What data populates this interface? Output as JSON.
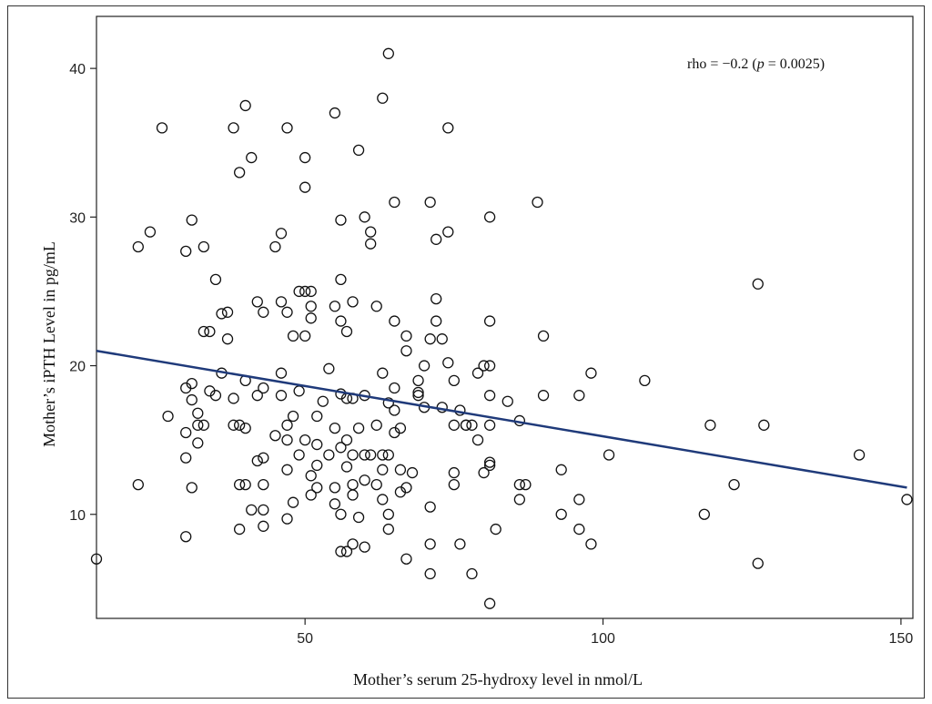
{
  "chart_data": {
    "type": "scatter",
    "title": "",
    "xlabel": "Mother’s serum 25-hydroxy level in nmol/L",
    "ylabel": "Mother’s iPTH Level in pg/mL",
    "xlim": [
      15,
      152
    ],
    "ylim": [
      3,
      43.5
    ],
    "xticks": [
      50,
      100,
      150
    ],
    "yticks": [
      10,
      20,
      30,
      40
    ],
    "annotation": {
      "prefix": "rho = −0.2 (",
      "italic": "p",
      "suffix": " = 0.0025)"
    },
    "line_color": "#1f3a7a",
    "trendline": {
      "x": [
        15,
        151
      ],
      "y": [
        21.0,
        11.8
      ]
    },
    "points": [
      [
        15,
        7
      ],
      [
        22,
        28
      ],
      [
        22,
        12
      ],
      [
        24,
        29
      ],
      [
        26,
        36
      ],
      [
        27,
        16.6
      ],
      [
        30,
        27.7
      ],
      [
        30,
        18.5
      ],
      [
        30,
        15.5
      ],
      [
        30,
        13.8
      ],
      [
        30,
        8.5
      ],
      [
        31,
        29.8
      ],
      [
        31,
        18.8
      ],
      [
        31,
        17.7
      ],
      [
        31,
        11.8
      ],
      [
        32,
        16
      ],
      [
        32,
        16.8
      ],
      [
        32,
        14.8
      ],
      [
        33,
        28
      ],
      [
        33,
        22.3
      ],
      [
        33,
        16
      ],
      [
        34,
        22.3
      ],
      [
        34,
        18.3
      ],
      [
        35,
        25.8
      ],
      [
        35,
        18
      ],
      [
        36,
        23.5
      ],
      [
        36,
        19.5
      ],
      [
        37,
        21.8
      ],
      [
        37,
        23.6
      ],
      [
        38,
        17.8
      ],
      [
        38,
        16
      ],
      [
        38,
        36
      ],
      [
        39,
        33
      ],
      [
        39,
        16
      ],
      [
        39,
        12
      ],
      [
        39,
        9
      ],
      [
        40,
        37.5
      ],
      [
        40,
        19
      ],
      [
        40,
        15.8
      ],
      [
        40,
        12
      ],
      [
        41,
        34
      ],
      [
        41,
        10.3
      ],
      [
        42,
        24.3
      ],
      [
        42,
        18
      ],
      [
        42,
        13.6
      ],
      [
        43,
        23.6
      ],
      [
        43,
        18.5
      ],
      [
        43,
        13.8
      ],
      [
        43,
        12
      ],
      [
        43,
        9.2
      ],
      [
        43,
        10.3
      ],
      [
        45,
        28
      ],
      [
        45,
        15.3
      ],
      [
        46,
        24.3
      ],
      [
        46,
        19.5
      ],
      [
        46,
        18
      ],
      [
        46,
        28.9
      ],
      [
        47,
        36
      ],
      [
        47,
        23.6
      ],
      [
        47,
        16
      ],
      [
        47,
        15
      ],
      [
        47,
        13
      ],
      [
        47,
        9.7
      ],
      [
        48,
        22
      ],
      [
        48,
        16.6
      ],
      [
        48,
        10.8
      ],
      [
        49,
        25
      ],
      [
        49,
        14
      ],
      [
        49,
        18.3
      ],
      [
        50,
        34
      ],
      [
        50,
        32
      ],
      [
        50,
        25
      ],
      [
        50,
        22
      ],
      [
        50,
        15
      ],
      [
        51,
        25
      ],
      [
        51,
        24
      ],
      [
        51,
        23.2
      ],
      [
        51,
        12.6
      ],
      [
        51,
        11.3
      ],
      [
        52,
        16.6
      ],
      [
        52,
        14.7
      ],
      [
        52,
        13.3
      ],
      [
        52,
        11.8
      ],
      [
        53,
        17.6
      ],
      [
        54,
        19.8
      ],
      [
        54,
        14
      ],
      [
        55,
        37
      ],
      [
        55,
        24
      ],
      [
        55,
        15.8
      ],
      [
        55,
        11.8
      ],
      [
        55,
        10.7
      ],
      [
        56,
        29.8
      ],
      [
        56,
        25.8
      ],
      [
        56,
        23
      ],
      [
        56,
        18.1
      ],
      [
        56,
        14.5
      ],
      [
        56,
        10
      ],
      [
        56,
        7.5
      ],
      [
        57,
        22.3
      ],
      [
        57,
        17.8
      ],
      [
        57,
        15
      ],
      [
        57,
        13.2
      ],
      [
        57,
        7.5
      ],
      [
        58,
        24.3
      ],
      [
        58,
        17.8
      ],
      [
        58,
        14
      ],
      [
        58,
        12
      ],
      [
        58,
        11.3
      ],
      [
        58,
        8
      ],
      [
        59,
        34.5
      ],
      [
        59,
        15.8
      ],
      [
        59,
        9.8
      ],
      [
        60,
        30
      ],
      [
        60,
        18
      ],
      [
        60,
        14
      ],
      [
        60,
        12.3
      ],
      [
        60,
        7.8
      ],
      [
        61,
        29
      ],
      [
        61,
        28.2
      ],
      [
        61,
        14
      ],
      [
        62,
        24
      ],
      [
        62,
        16
      ],
      [
        62,
        12
      ],
      [
        63,
        38
      ],
      [
        63,
        19.5
      ],
      [
        63,
        14
      ],
      [
        63,
        13
      ],
      [
        63,
        11
      ],
      [
        64,
        41
      ],
      [
        64,
        17.5
      ],
      [
        64,
        14
      ],
      [
        64,
        9
      ],
      [
        64,
        10
      ],
      [
        65,
        31
      ],
      [
        65,
        23
      ],
      [
        65,
        18.5
      ],
      [
        65,
        17
      ],
      [
        65,
        15.5
      ],
      [
        66,
        15.8
      ],
      [
        66,
        13
      ],
      [
        66,
        11.5
      ],
      [
        67,
        22
      ],
      [
        67,
        21
      ],
      [
        67,
        11.8
      ],
      [
        67,
        7
      ],
      [
        68,
        12.8
      ],
      [
        69,
        18.2
      ],
      [
        69,
        18
      ],
      [
        69,
        19
      ],
      [
        70,
        20
      ],
      [
        70,
        17.2
      ],
      [
        71,
        31
      ],
      [
        71,
        21.8
      ],
      [
        71,
        10.5
      ],
      [
        71,
        8
      ],
      [
        71,
        6
      ],
      [
        72,
        28.5
      ],
      [
        72,
        24.5
      ],
      [
        72,
        23
      ],
      [
        73,
        21.8
      ],
      [
        73,
        17.2
      ],
      [
        74,
        36
      ],
      [
        74,
        29
      ],
      [
        74,
        20.2
      ],
      [
        75,
        19
      ],
      [
        75,
        16
      ],
      [
        75,
        12.8
      ],
      [
        75,
        12
      ],
      [
        76,
        17
      ],
      [
        76,
        8
      ],
      [
        77,
        16
      ],
      [
        77,
        16
      ],
      [
        78,
        16
      ],
      [
        78,
        6
      ],
      [
        79,
        19.5
      ],
      [
        79,
        15
      ],
      [
        80,
        20
      ],
      [
        80,
        12.8
      ],
      [
        81,
        30
      ],
      [
        81,
        23
      ],
      [
        81,
        20
      ],
      [
        81,
        18
      ],
      [
        81,
        16
      ],
      [
        81,
        13.5
      ],
      [
        81,
        13.3
      ],
      [
        81,
        4
      ],
      [
        82,
        9
      ],
      [
        84,
        17.6
      ],
      [
        86,
        16.3
      ],
      [
        86,
        12
      ],
      [
        86,
        11
      ],
      [
        87,
        12
      ],
      [
        89,
        31
      ],
      [
        90,
        22
      ],
      [
        90,
        18
      ],
      [
        93,
        13
      ],
      [
        93,
        10
      ],
      [
        96,
        18
      ],
      [
        96,
        11
      ],
      [
        96,
        9
      ],
      [
        98,
        19.5
      ],
      [
        98,
        8
      ],
      [
        101,
        14
      ],
      [
        107,
        19
      ],
      [
        117,
        10
      ],
      [
        118,
        16
      ],
      [
        122,
        12
      ],
      [
        126,
        25.5
      ],
      [
        126,
        6.7
      ],
      [
        127,
        16
      ],
      [
        143,
        14
      ],
      [
        151,
        11
      ]
    ]
  }
}
